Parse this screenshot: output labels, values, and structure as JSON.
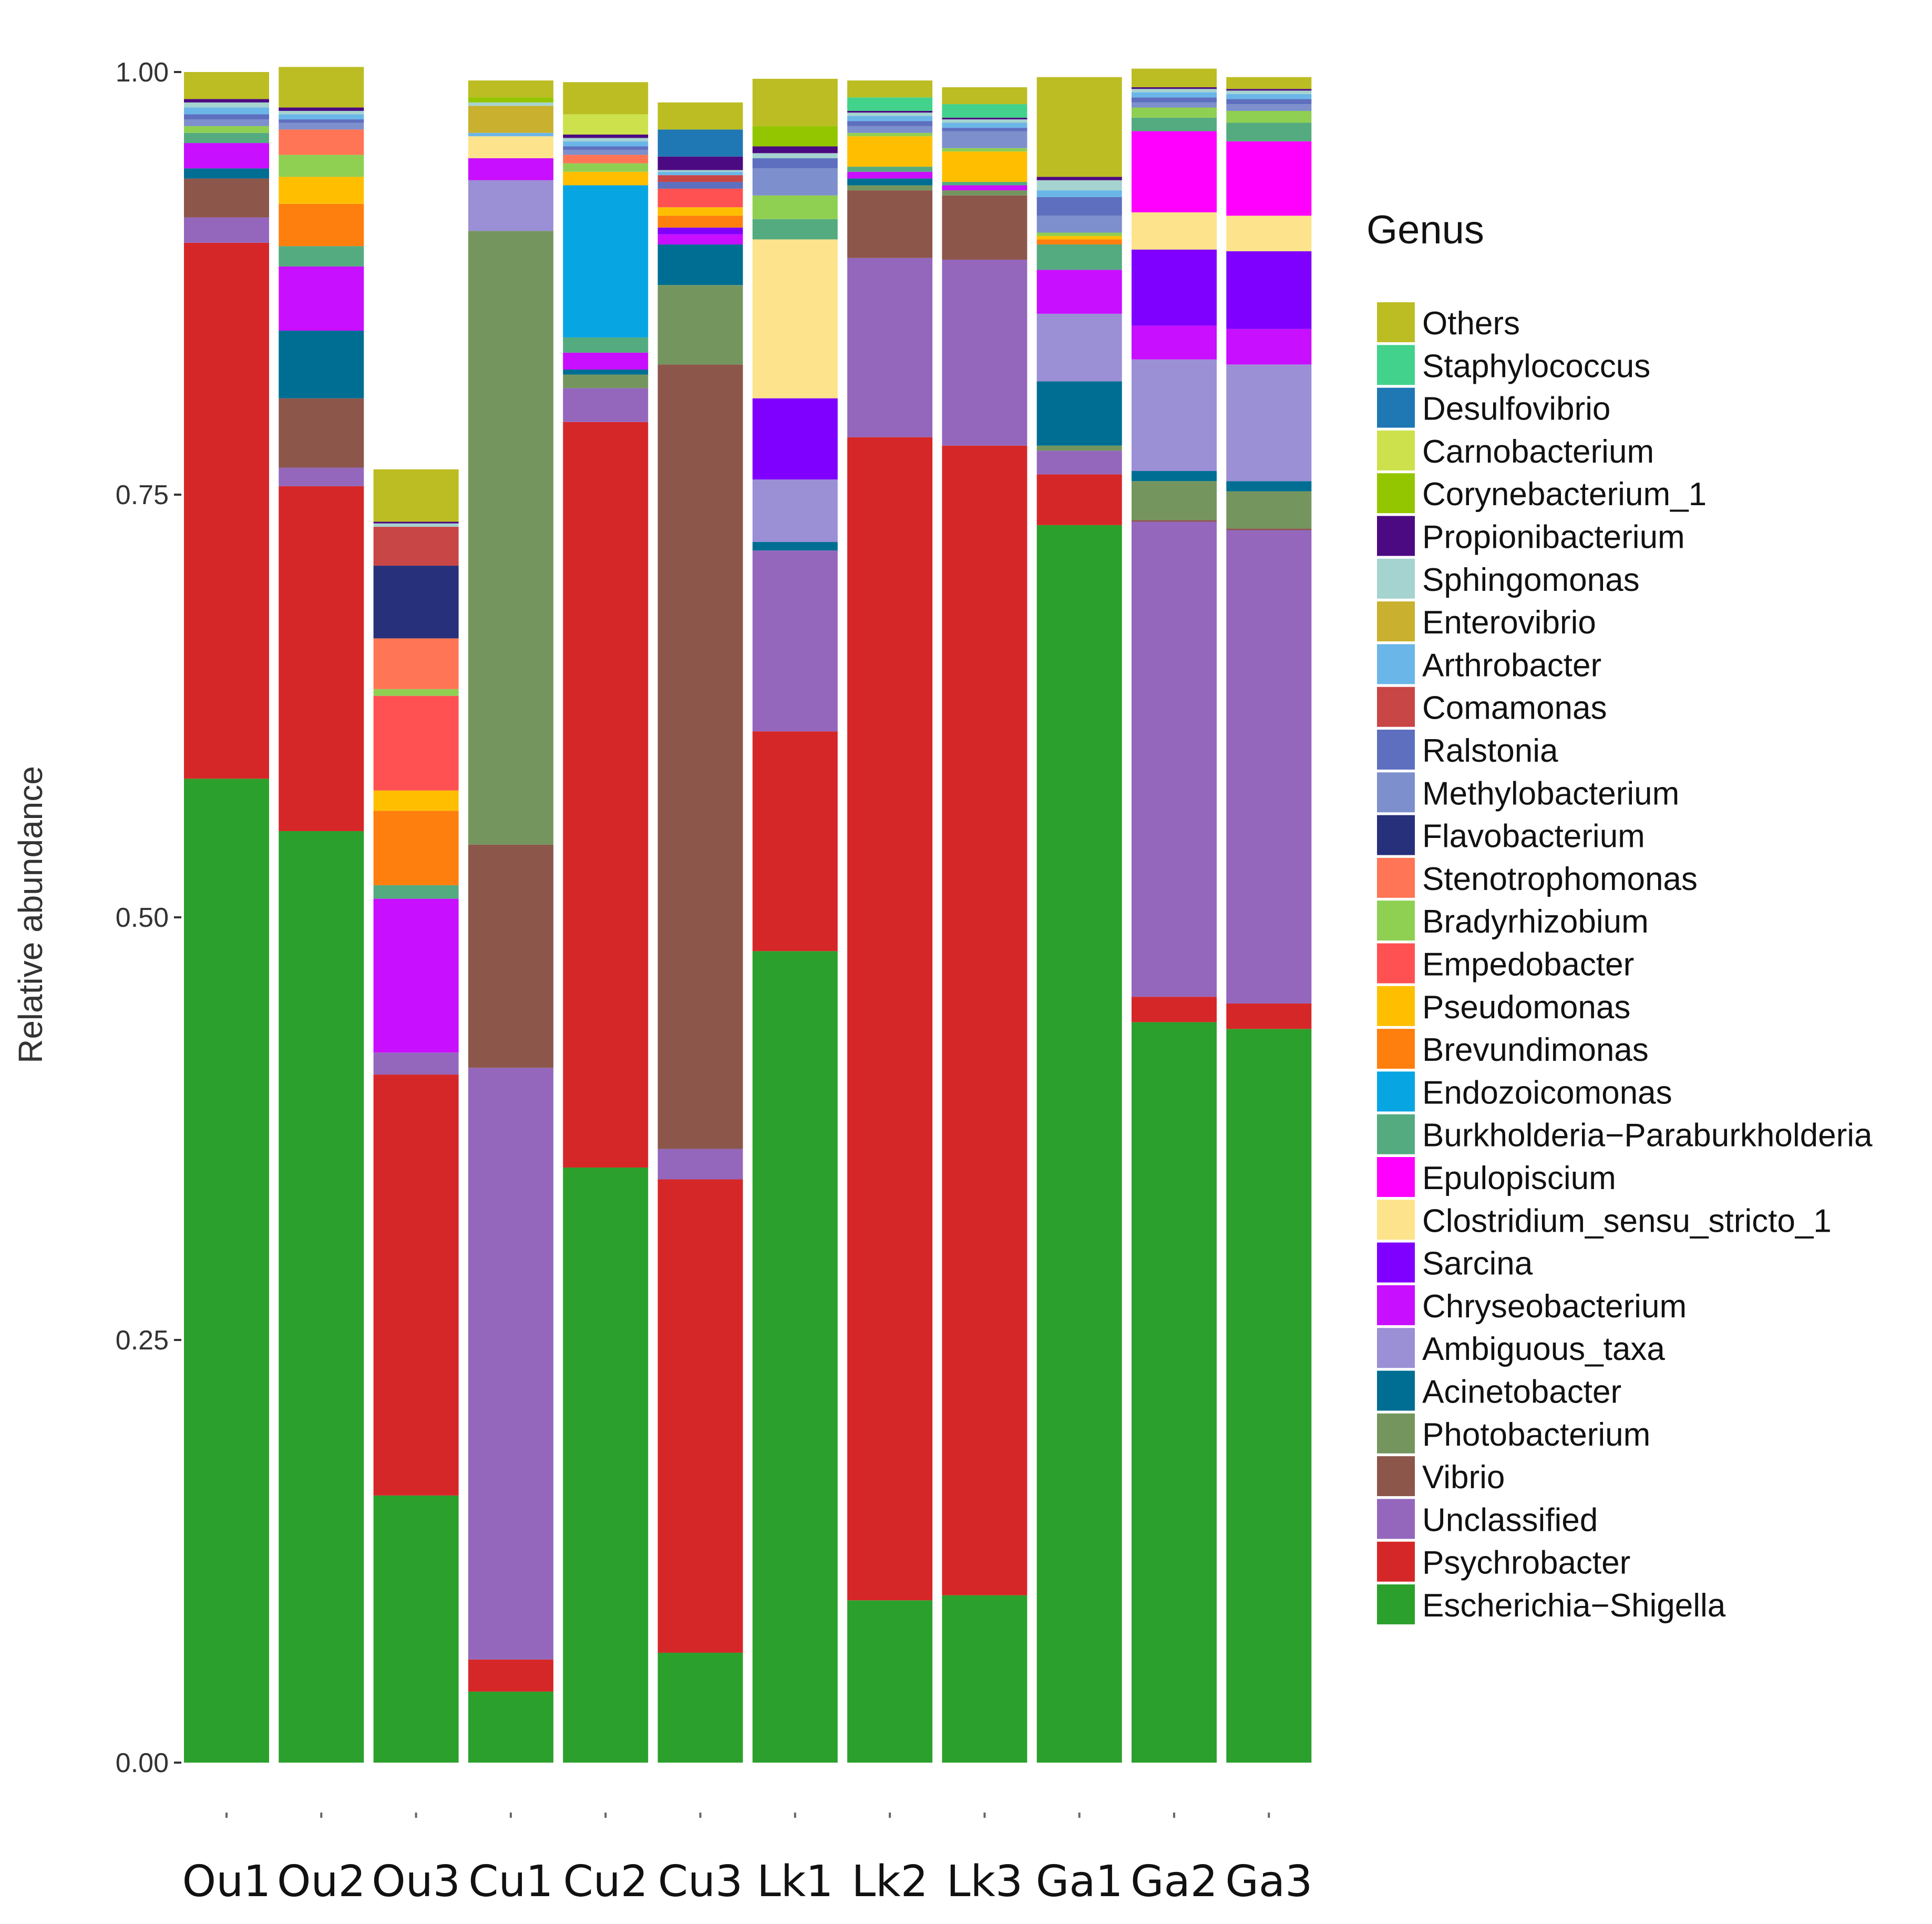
{
  "chart_data": {
    "type": "bar",
    "stacked": true,
    "ylabel": "Relative abundance",
    "xlabel": "",
    "ylim": [
      0,
      1
    ],
    "yticks": [
      "0.00",
      "0.25",
      "0.50",
      "0.75",
      "1.00"
    ],
    "legend_title": "Genus",
    "legend_position": "right",
    "categories": [
      "Ou1",
      "Ou2",
      "Ou3",
      "Cu1",
      "Cu2",
      "Cu3",
      "Lk1",
      "Lk2",
      "Lk3",
      "Ga1",
      "Ga2",
      "Ga3"
    ],
    "series": [
      {
        "name": "Escherichia−Shigella",
        "color": "#2ca02c",
        "values": [
          0.582,
          0.551,
          0.158,
          0.042,
          0.352,
          0.065,
          0.48,
          0.096,
          0.099,
          0.732,
          0.438,
          0.434
        ]
      },
      {
        "name": "Psychrobacter",
        "color": "#d62728",
        "values": [
          0.317,
          0.204,
          0.249,
          0.019,
          0.441,
          0.28,
          0.13,
          0.688,
          0.68,
          0.03,
          0.015,
          0.015
        ]
      },
      {
        "name": "Unclassified",
        "color": "#9467bd",
        "values": [
          0.015,
          0.011,
          0.013,
          0.35,
          0.02,
          0.018,
          0.107,
          0.106,
          0.11,
          0.014,
          0.281,
          0.28
        ]
      },
      {
        "name": "Vibrio",
        "color": "#8c564b",
        "values": [
          0.023,
          0.041,
          0.0,
          0.132,
          0.0,
          0.464,
          0.0,
          0.04,
          0.038,
          0.0,
          0.001,
          0.001
        ]
      },
      {
        "name": "Photobacterium",
        "color": "#74965e",
        "values": [
          0.0,
          0.0,
          0.0,
          0.363,
          0.008,
          0.047,
          0.0,
          0.003,
          0.003,
          0.003,
          0.023,
          0.022
        ]
      },
      {
        "name": "Acinetobacter",
        "color": "#006e93",
        "values": [
          0.006,
          0.04,
          0.0,
          0.0,
          0.003,
          0.024,
          0.005,
          0.004,
          0.0,
          0.038,
          0.006,
          0.006
        ]
      },
      {
        "name": "Ambiguous_taxa",
        "color": "#9b8fd6",
        "values": [
          0.0,
          0.0,
          0.0,
          0.03,
          0.0,
          0.0,
          0.037,
          0.0,
          0.0,
          0.04,
          0.066,
          0.069
        ]
      },
      {
        "name": "Chryseobacterium",
        "color": "#c80fff",
        "values": [
          0.015,
          0.038,
          0.091,
          0.013,
          0.01,
          0.006,
          0.0,
          0.004,
          0.003,
          0.026,
          0.02,
          0.021
        ]
      },
      {
        "name": "Sarcina",
        "color": "#7f00ff",
        "values": [
          0.0,
          0.0,
          0.0,
          0.0,
          0.0,
          0.004,
          0.048,
          0.0,
          0.0,
          0.0,
          0.045,
          0.046
        ]
      },
      {
        "name": "Clostridium_sensu_stricto_1",
        "color": "#fde38b",
        "values": [
          0.0,
          0.0,
          0.0,
          0.013,
          0.0,
          0.0,
          0.094,
          0.0,
          0.0,
          0.0,
          0.022,
          0.021
        ]
      },
      {
        "name": "Epulopiscium",
        "color": "#ff00ff",
        "values": [
          0.0,
          0.0,
          0.0,
          0.0,
          0.0,
          0.0,
          0.0,
          0.0,
          0.0,
          0.0,
          0.048,
          0.044
        ]
      },
      {
        "name": "Burkholderia−Paraburkholderia",
        "color": "#54ab7f",
        "values": [
          0.006,
          0.012,
          0.008,
          0.0,
          0.009,
          0.0,
          0.012,
          0.003,
          0.002,
          0.015,
          0.008,
          0.011
        ]
      },
      {
        "name": "Endozoicomonas",
        "color": "#08a5e3",
        "values": [
          0.0,
          0.0,
          0.0,
          0.0,
          0.09,
          0.0,
          0.0,
          0.0,
          0.0,
          0.0,
          0.0,
          0.0
        ]
      },
      {
        "name": "Brevundimonas",
        "color": "#ff7f0e",
        "values": [
          0.0,
          0.025,
          0.044,
          0.0,
          0.0,
          0.007,
          0.0,
          0.0,
          0.0,
          0.003,
          0.0,
          0.0
        ]
      },
      {
        "name": "Pseudomonas",
        "color": "#ffbf00",
        "values": [
          0.0,
          0.016,
          0.012,
          0.0,
          0.008,
          0.005,
          0.0,
          0.018,
          0.018,
          0.002,
          0.0,
          0.0
        ]
      },
      {
        "name": "Empedobacter",
        "color": "#ff5151",
        "values": [
          0.0,
          0.0,
          0.056,
          0.0,
          0.0,
          0.011,
          0.0,
          0.0,
          0.0,
          0.0,
          0.0,
          0.0
        ]
      },
      {
        "name": "Bradyrhizobium",
        "color": "#8fcf52",
        "values": [
          0.004,
          0.013,
          0.004,
          0.0,
          0.005,
          0.0,
          0.014,
          0.002,
          0.002,
          0.002,
          0.006,
          0.007
        ]
      },
      {
        "name": "Stenotrophomonas",
        "color": "#ff7555",
        "values": [
          0.0,
          0.015,
          0.03,
          0.0,
          0.005,
          0.0,
          0.0,
          0.0,
          0.0,
          0.0,
          0.0,
          0.0
        ]
      },
      {
        "name": "Flavobacterium",
        "color": "#27307a",
        "values": [
          0.0,
          0.0,
          0.043,
          0.0,
          0.0,
          0.0,
          0.0,
          0.0,
          0.0,
          0.0,
          0.0,
          0.0
        ]
      },
      {
        "name": "Methylobacterium",
        "color": "#7d8fcc",
        "values": [
          0.004,
          0.004,
          0.0,
          0.0,
          0.003,
          0.0,
          0.016,
          0.004,
          0.01,
          0.01,
          0.003,
          0.004
        ]
      },
      {
        "name": "Ralstonia",
        "color": "#5e6fbf",
        "values": [
          0.003,
          0.002,
          0.0,
          0.0,
          0.002,
          0.004,
          0.006,
          0.003,
          0.002,
          0.011,
          0.003,
          0.003
        ]
      },
      {
        "name": "Comamonas",
        "color": "#c94646",
        "values": [
          0.0,
          0.0,
          0.023,
          0.0,
          0.0,
          0.004,
          0.0,
          0.0,
          0.0,
          0.0,
          0.0,
          0.0
        ]
      },
      {
        "name": "Arthrobacter",
        "color": "#6bb6e8",
        "values": [
          0.004,
          0.003,
          0.0,
          0.002,
          0.003,
          0.002,
          0.0,
          0.003,
          0.003,
          0.004,
          0.003,
          0.003
        ]
      },
      {
        "name": "Enterovibrio",
        "color": "#c9b02e",
        "values": [
          0.0,
          0.0,
          0.0,
          0.016,
          0.0,
          0.0,
          0.0,
          0.0,
          0.0,
          0.0,
          0.0,
          0.0
        ]
      },
      {
        "name": "Sphingomonas",
        "color": "#a5d3d0",
        "values": [
          0.003,
          0.002,
          0.002,
          0.002,
          0.002,
          0.001,
          0.003,
          0.002,
          0.002,
          0.006,
          0.002,
          0.002
        ]
      },
      {
        "name": "Propionibacterium",
        "color": "#4c0a82",
        "values": [
          0.002,
          0.002,
          0.001,
          0.0,
          0.002,
          0.008,
          0.004,
          0.001,
          0.001,
          0.002,
          0.001,
          0.001
        ]
      },
      {
        "name": "Corynebacterium_1",
        "color": "#94c600",
        "values": [
          0.0,
          0.0,
          0.0,
          0.003,
          0.0,
          0.0,
          0.012,
          0.0,
          0.0,
          0.0,
          0.0,
          0.0
        ]
      },
      {
        "name": "Carnobacterium",
        "color": "#cce14c",
        "values": [
          0.0,
          0.0,
          0.0,
          0.0,
          0.012,
          0.0,
          0.0,
          0.0,
          0.0,
          0.0,
          0.0,
          0.0
        ]
      },
      {
        "name": "Desulfovibrio",
        "color": "#1f77b4",
        "values": [
          0.0,
          0.0,
          0.0,
          0.0,
          0.0,
          0.016,
          0.0,
          0.0,
          0.0,
          0.0,
          0.0,
          0.0
        ]
      },
      {
        "name": "Staphylococcus",
        "color": "#42d28c",
        "values": [
          0.0,
          0.0,
          0.0,
          0.0,
          0.0,
          0.0,
          0.0,
          0.008,
          0.008,
          0.0,
          0.0,
          0.0
        ]
      },
      {
        "name": "Others",
        "color": "#bcbd22",
        "values": [
          0.016,
          0.024,
          0.031,
          0.01,
          0.019,
          0.016,
          0.028,
          0.01,
          0.01,
          0.059,
          0.011,
          0.007
        ]
      }
    ]
  }
}
